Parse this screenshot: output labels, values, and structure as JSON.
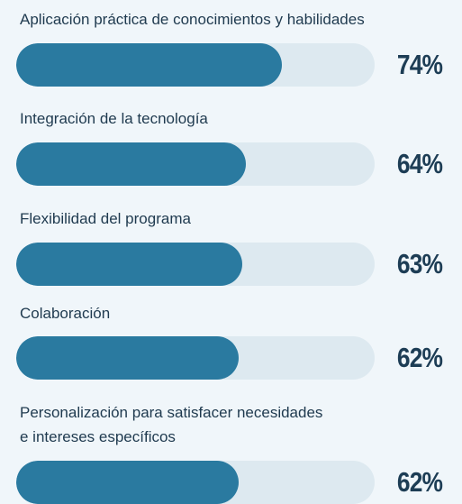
{
  "chart_data": {
    "type": "bar",
    "categories": [
      "Aplicación práctica de conocimientos y habilidades",
      "Integración de la tecnología",
      "Flexibilidad del programa",
      "Colaboración",
      "Personalización para satisfacer necesidades\ne intereses específicos"
    ],
    "values": [
      74,
      64,
      63,
      62,
      62
    ],
    "value_labels": [
      "74%",
      "64%",
      "63%",
      "62%",
      "62%"
    ],
    "color": "#2a7aa0",
    "xlim": [
      0,
      100
    ]
  }
}
